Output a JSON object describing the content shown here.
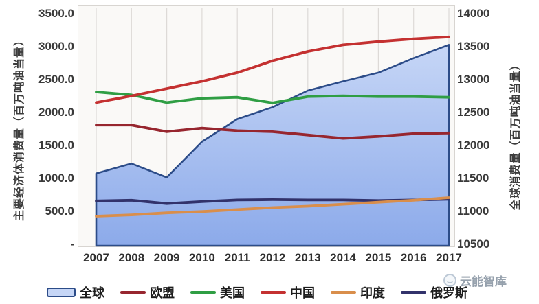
{
  "watermark": {
    "text": "云能智库"
  },
  "chart_data": {
    "type": "area",
    "title": "",
    "categories": [
      "2007",
      "2008",
      "2009",
      "2010",
      "2011",
      "2012",
      "2013",
      "2014",
      "2015",
      "2016",
      "2017"
    ],
    "left_axis": {
      "title": "主要经济体消费量（百万吨油当量）",
      "min": 0,
      "max": 3500,
      "ticks": [
        "3500.0",
        "3000.0",
        "2500.0",
        "2000.0",
        "1500.0",
        "1000.0",
        "500.0",
        "-"
      ]
    },
    "right_axis": {
      "title": "全球消费量（百万吨油当量）",
      "min": 10500,
      "max": 14000,
      "ticks": [
        "14000",
        "13500",
        "13000",
        "12500",
        "12000",
        "11500",
        "11000",
        "10500"
      ]
    },
    "grid": "vertical-only",
    "legend_position": "bottom",
    "legend_order": [
      "global",
      "eu",
      "usa",
      "china",
      "india",
      "russia"
    ],
    "series": [
      {
        "key": "global",
        "name": "全球",
        "style": "area",
        "axis": "right",
        "color": "#2c4c88",
        "fill_top": "#c6d6f6",
        "fill_bottom": "#8caaea",
        "values": [
          11590,
          11740,
          11530,
          12070,
          12410,
          12590,
          12840,
          12980,
          13110,
          13330,
          13530
        ]
      },
      {
        "key": "eu",
        "name": "欧盟",
        "style": "line",
        "axis": "left",
        "color": "#97262f",
        "values": [
          1820,
          1820,
          1720,
          1775,
          1735,
          1720,
          1670,
          1620,
          1650,
          1690,
          1700
        ]
      },
      {
        "key": "usa",
        "name": "美国",
        "style": "line",
        "axis": "left",
        "color": "#2f9e44",
        "values": [
          2320,
          2275,
          2160,
          2225,
          2240,
          2155,
          2250,
          2260,
          2250,
          2250,
          2240
        ]
      },
      {
        "key": "china",
        "name": "中国",
        "style": "line",
        "axis": "left",
        "color": "#c43131",
        "values": [
          2160,
          2260,
          2370,
          2480,
          2610,
          2790,
          2930,
          3030,
          3080,
          3120,
          3150
        ]
      },
      {
        "key": "russia",
        "name": "俄罗斯",
        "style": "line",
        "axis": "left",
        "color": "#32326b",
        "values": [
          675,
          685,
          635,
          665,
          690,
          695,
          690,
          690,
          680,
          690,
          700
        ]
      },
      {
        "key": "india",
        "name": "印度",
        "style": "line",
        "axis": "left",
        "color": "#d98e4b",
        "values": [
          445,
          465,
          495,
          515,
          545,
          575,
          595,
          625,
          655,
          685,
          725
        ]
      }
    ]
  }
}
